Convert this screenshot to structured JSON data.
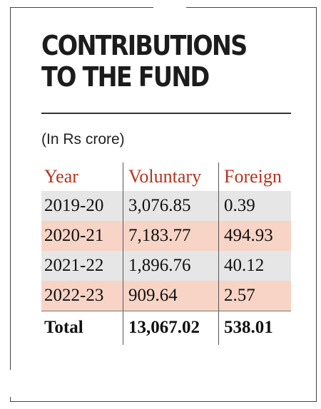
{
  "title_lines": [
    "CONTRIBUTIONS",
    "TO THE FUND"
  ],
  "subtitle": "(In Rs crore)",
  "colors": {
    "header_text": "#b5331f",
    "row_grey": "#e6e6e6",
    "row_pink": "#f7d4c6"
  },
  "chart_data": {
    "type": "table",
    "title": "CONTRIBUTIONS TO THE FUND",
    "subtitle": "(In Rs crore)",
    "columns": [
      "Year",
      "Voluntary",
      "Foreign"
    ],
    "rows": [
      [
        "2019-20",
        "3,076.85",
        "0.39"
      ],
      [
        "2020-21",
        "7,183.77",
        "494.93"
      ],
      [
        "2021-22",
        "1,896.76",
        "40.12"
      ],
      [
        "2022-23",
        "909.64",
        "2.57"
      ]
    ],
    "total_row": [
      "Total",
      "13,067.02",
      "538.01"
    ]
  }
}
